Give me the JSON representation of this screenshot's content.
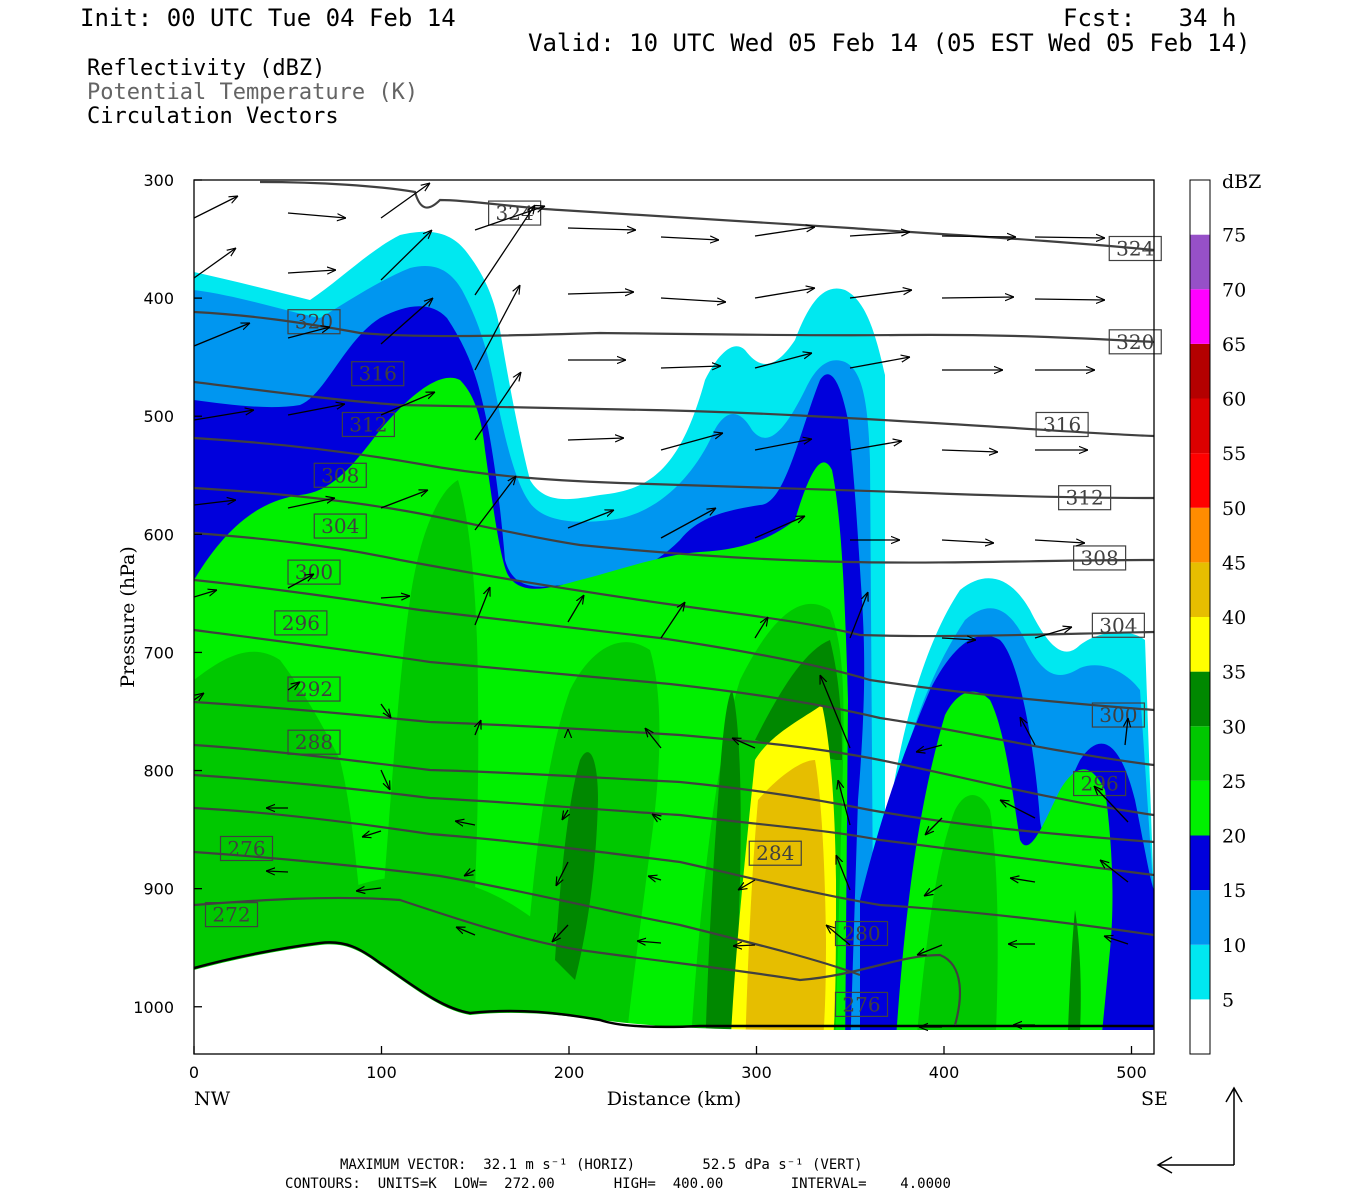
{
  "header": {
    "init": "Init: 00 UTC Tue 04 Feb 14",
    "fcst": "Fcst:   34 h",
    "valid": "Valid: 10 UTC Wed 05 Feb 14 (05 EST Wed 05 Feb 14)",
    "legend_lines": [
      "Reflectivity (dBZ)",
      "Potential Temperature (K)",
      "Circulation Vectors"
    ]
  },
  "footer": {
    "max_vector": "MAXIMUM VECTOR:  32.1 m s⁻¹ (HORIZ)        52.5 dPa s⁻¹ (VERT)",
    "contours": "CONTOURS:  UNITS=K  LOW=  272.00       HIGH=  400.00        INTERVAL=    4.0000"
  },
  "chart_data": {
    "type": "cross-section",
    "xlabel": "Distance (km)",
    "ylabel": "Pressure (hPa)",
    "x_ticks": [
      0,
      100,
      200,
      300,
      400,
      500
    ],
    "y_ticks": [
      300,
      400,
      500,
      600,
      700,
      800,
      900,
      1000
    ],
    "xlim": [
      0,
      512
    ],
    "ylim": [
      300,
      1040
    ],
    "x_end_labels": {
      "left": "NW",
      "right": "SE"
    },
    "colorbar": {
      "unit": "dBZ",
      "levels": [
        5,
        10,
        15,
        20,
        25,
        30,
        35,
        40,
        45,
        50,
        55,
        60,
        65,
        70,
        75
      ],
      "colors": [
        "#ffffff",
        "#00e8f0",
        "#0096f0",
        "#0000dc",
        "#00f000",
        "#00c800",
        "#008800",
        "#ffff00",
        "#e6be00",
        "#ff8c00",
        "#ff0000",
        "#dc0000",
        "#b40000",
        "#ff00ff",
        "#9650c8",
        "#ffffff"
      ]
    },
    "theta_contours_K": [
      272,
      276,
      280,
      284,
      288,
      292,
      296,
      300,
      304,
      308,
      312,
      316,
      320,
      324
    ],
    "theta_labels": [
      {
        "v": "272",
        "x": 20,
        "p": 922
      },
      {
        "v": "276",
        "x": 28,
        "p": 866
      },
      {
        "v": "288",
        "x": 64,
        "p": 776
      },
      {
        "v": "292",
        "x": 64,
        "p": 731
      },
      {
        "v": "296",
        "x": 57,
        "p": 675
      },
      {
        "v": "300",
        "x": 64,
        "p": 632
      },
      {
        "v": "304",
        "x": 78,
        "p": 593
      },
      {
        "v": "308",
        "x": 78,
        "p": 550
      },
      {
        "v": "312",
        "x": 93,
        "p": 507
      },
      {
        "v": "316",
        "x": 98,
        "p": 464
      },
      {
        "v": "320",
        "x": 64,
        "p": 420
      },
      {
        "v": "324",
        "x": 171,
        "p": 328
      },
      {
        "v": "324",
        "x": 502,
        "p": 358
      },
      {
        "v": "320",
        "x": 502,
        "p": 437
      },
      {
        "v": "316",
        "x": 463,
        "p": 507
      },
      {
        "v": "312",
        "x": 475,
        "p": 569
      },
      {
        "v": "308",
        "x": 483,
        "p": 620
      },
      {
        "v": "304",
        "x": 493,
        "p": 677
      },
      {
        "v": "300",
        "x": 493,
        "p": 753
      },
      {
        "v": "296",
        "x": 483,
        "p": 811
      },
      {
        "v": "284",
        "x": 310,
        "p": 870
      },
      {
        "v": "280",
        "x": 356,
        "p": 938
      },
      {
        "v": "276",
        "x": 356,
        "p": 998
      }
    ],
    "max_vector": {
      "horiz_m_s": 32.1,
      "vert_dPa_s": 52.5
    }
  }
}
